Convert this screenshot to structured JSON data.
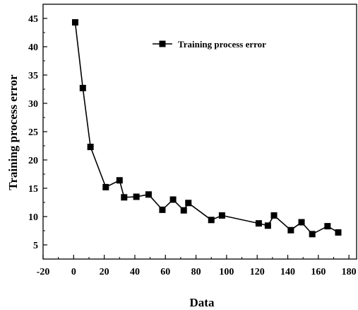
{
  "chart_data": {
    "type": "line",
    "title": "",
    "xlabel": "Data",
    "ylabel": "Training process error",
    "xlim": [
      -20,
      185
    ],
    "ylim": [
      2.5,
      47.5
    ],
    "xticks": [
      "-20",
      "0",
      "20",
      "40",
      "60",
      "80",
      "100",
      "120",
      "140",
      "160",
      "180"
    ],
    "yticks": [
      "5",
      "10",
      "15",
      "20",
      "25",
      "30",
      "35",
      "40",
      "45"
    ],
    "grid": false,
    "legend_position": "top-right",
    "marker": "square",
    "series": [
      {
        "name": "Training process error",
        "color": "#000000",
        "points": [
          [
            1,
            44.3
          ],
          [
            6,
            32.7
          ],
          [
            11,
            22.3
          ],
          [
            21,
            15.2
          ],
          [
            30,
            16.4
          ],
          [
            33,
            13.4
          ],
          [
            41,
            13.5
          ],
          [
            49,
            13.9
          ],
          [
            58,
            11.2
          ],
          [
            65,
            13.0
          ],
          [
            72,
            11.1
          ],
          [
            75,
            12.4
          ],
          [
            90,
            9.4
          ],
          [
            97,
            10.2
          ],
          [
            121,
            8.8
          ],
          [
            127,
            8.4
          ],
          [
            131,
            10.2
          ],
          [
            142,
            7.6
          ],
          [
            149,
            9.0
          ],
          [
            156,
            6.9
          ],
          [
            166,
            8.3
          ],
          [
            173,
            7.2
          ]
        ]
      }
    ]
  }
}
